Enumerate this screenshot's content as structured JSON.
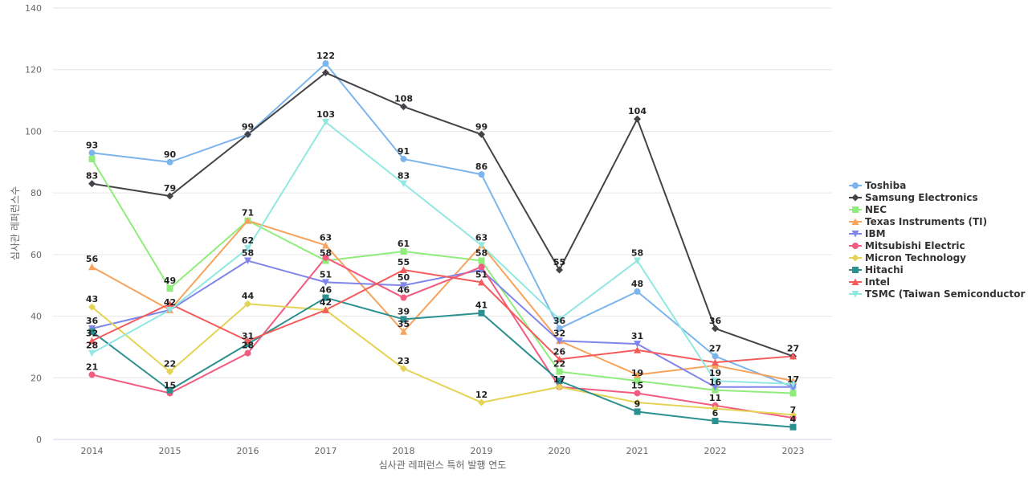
{
  "chart_data": {
    "type": "line",
    "title": "",
    "xlabel": "심사관 레퍼런스 특허 발행 연도",
    "ylabel": "심사관 레퍼런스수",
    "ylim": [
      0,
      140
    ],
    "yticks": [
      "0",
      "20",
      "40",
      "60",
      "80",
      "100",
      "120",
      "140"
    ],
    "grid": true,
    "legend_position": "right",
    "categories": [
      "2014",
      "2015",
      "2016",
      "2017",
      "2018",
      "2019",
      "2020",
      "2021",
      "2022",
      "2023"
    ],
    "series": [
      {
        "name": "Toshiba",
        "color": "#7cb5ec",
        "marker": "circle",
        "values": [
          93,
          90,
          99,
          122,
          91,
          86,
          36,
          48,
          27,
          17
        ]
      },
      {
        "name": "Samsung Electronics",
        "color": "#434348",
        "marker": "diamond",
        "values": [
          83,
          79,
          99,
          119,
          108,
          99,
          55,
          104,
          36,
          27
        ]
      },
      {
        "name": "NEC",
        "color": "#90ed7d",
        "marker": "square",
        "values": [
          91,
          49,
          71,
          58,
          61,
          58,
          22,
          19,
          16,
          15
        ]
      },
      {
        "name": "Texas Instruments (TI)",
        "color": "#f7a35c",
        "marker": "triangle",
        "values": [
          56,
          42,
          71,
          63,
          35,
          63,
          32,
          21,
          24,
          19
        ]
      },
      {
        "name": "IBM",
        "color": "#8085e9",
        "marker": "triangle-down",
        "values": [
          36,
          42,
          58,
          51,
          50,
          55,
          32,
          31,
          17,
          17
        ]
      },
      {
        "name": "Mitsubishi Electric",
        "color": "#f15c80",
        "marker": "circle",
        "values": [
          21,
          15,
          28,
          59,
          46,
          56,
          17,
          15,
          11,
          7
        ]
      },
      {
        "name": "Micron Technology",
        "color": "#e4d354",
        "marker": "diamond",
        "values": [
          43,
          22,
          44,
          42,
          23,
          12,
          17,
          12,
          10,
          8
        ]
      },
      {
        "name": "Hitachi",
        "color": "#2b908f",
        "marker": "square",
        "values": [
          35,
          16,
          31,
          46,
          39,
          41,
          19,
          9,
          6,
          4
        ]
      },
      {
        "name": "Intel",
        "color": "#f45b5b",
        "marker": "triangle",
        "values": [
          32,
          44,
          32,
          42,
          55,
          51,
          26,
          29,
          25,
          27
        ]
      },
      {
        "name": "TSMC (Taiwan Semiconductor ...",
        "color": "#91e8e1",
        "marker": "triangle-down",
        "values": [
          28,
          42,
          62,
          103,
          83,
          63,
          39,
          58,
          19,
          18
        ]
      }
    ],
    "data_labels": [
      {
        "x": "2014",
        "y": 93,
        "text": "93"
      },
      {
        "x": "2014",
        "y": 83,
        "text": "83"
      },
      {
        "x": "2014",
        "y": 56,
        "text": "56"
      },
      {
        "x": "2014",
        "y": 43,
        "text": "43"
      },
      {
        "x": "2014",
        "y": 36,
        "text": "36"
      },
      {
        "x": "2014",
        "y": 32,
        "text": "32"
      },
      {
        "x": "2014",
        "y": 28,
        "text": "28"
      },
      {
        "x": "2014",
        "y": 21,
        "text": "21"
      },
      {
        "x": "2015",
        "y": 90,
        "text": "90"
      },
      {
        "x": "2015",
        "y": 79,
        "text": "79"
      },
      {
        "x": "2015",
        "y": 49,
        "text": "49"
      },
      {
        "x": "2015",
        "y": 42,
        "text": "42"
      },
      {
        "x": "2015",
        "y": 22,
        "text": "22"
      },
      {
        "x": "2015",
        "y": 15,
        "text": "15"
      },
      {
        "x": "2016",
        "y": 99,
        "text": "99"
      },
      {
        "x": "2016",
        "y": 71,
        "text": "71"
      },
      {
        "x": "2016",
        "y": 62,
        "text": "62"
      },
      {
        "x": "2016",
        "y": 58,
        "text": "58"
      },
      {
        "x": "2016",
        "y": 44,
        "text": "44"
      },
      {
        "x": "2016",
        "y": 31,
        "text": "31"
      },
      {
        "x": "2016",
        "y": 28,
        "text": "28"
      },
      {
        "x": "2017",
        "y": 122,
        "text": "122"
      },
      {
        "x": "2017",
        "y": 103,
        "text": "103"
      },
      {
        "x": "2017",
        "y": 63,
        "text": "63"
      },
      {
        "x": "2017",
        "y": 58,
        "text": "58"
      },
      {
        "x": "2017",
        "y": 51,
        "text": "51"
      },
      {
        "x": "2017",
        "y": 46,
        "text": "46"
      },
      {
        "x": "2017",
        "y": 42,
        "text": "42"
      },
      {
        "x": "2018",
        "y": 108,
        "text": "108"
      },
      {
        "x": "2018",
        "y": 91,
        "text": "91"
      },
      {
        "x": "2018",
        "y": 83,
        "text": "83"
      },
      {
        "x": "2018",
        "y": 61,
        "text": "61"
      },
      {
        "x": "2018",
        "y": 55,
        "text": "55"
      },
      {
        "x": "2018",
        "y": 50,
        "text": "50"
      },
      {
        "x": "2018",
        "y": 46,
        "text": "46"
      },
      {
        "x": "2018",
        "y": 39,
        "text": "39"
      },
      {
        "x": "2018",
        "y": 35,
        "text": "35"
      },
      {
        "x": "2018",
        "y": 23,
        "text": "23"
      },
      {
        "x": "2019",
        "y": 99,
        "text": "99"
      },
      {
        "x": "2019",
        "y": 86,
        "text": "86"
      },
      {
        "x": "2019",
        "y": 63,
        "text": "63"
      },
      {
        "x": "2019",
        "y": 58,
        "text": "58"
      },
      {
        "x": "2019",
        "y": 51,
        "text": "51"
      },
      {
        "x": "2019",
        "y": 41,
        "text": "41"
      },
      {
        "x": "2019",
        "y": 12,
        "text": "12"
      },
      {
        "x": "2020",
        "y": 55,
        "text": "55"
      },
      {
        "x": "2020",
        "y": 36,
        "text": "36"
      },
      {
        "x": "2020",
        "y": 32,
        "text": "32"
      },
      {
        "x": "2020",
        "y": 26,
        "text": "26"
      },
      {
        "x": "2020",
        "y": 22,
        "text": "22"
      },
      {
        "x": "2020",
        "y": 17,
        "text": "17"
      },
      {
        "x": "2021",
        "y": 104,
        "text": "104"
      },
      {
        "x": "2021",
        "y": 58,
        "text": "58"
      },
      {
        "x": "2021",
        "y": 48,
        "text": "48"
      },
      {
        "x": "2021",
        "y": 31,
        "text": "31"
      },
      {
        "x": "2021",
        "y": 19,
        "text": "19"
      },
      {
        "x": "2021",
        "y": 15,
        "text": "15"
      },
      {
        "x": "2021",
        "y": 9,
        "text": "9"
      },
      {
        "x": "2022",
        "y": 36,
        "text": "36"
      },
      {
        "x": "2022",
        "y": 27,
        "text": "27"
      },
      {
        "x": "2022",
        "y": 19,
        "text": "19"
      },
      {
        "x": "2022",
        "y": 16,
        "text": "16"
      },
      {
        "x": "2022",
        "y": 11,
        "text": "11"
      },
      {
        "x": "2022",
        "y": 6,
        "text": "6"
      },
      {
        "x": "2023",
        "y": 27,
        "text": "27"
      },
      {
        "x": "2023",
        "y": 17,
        "text": "17"
      },
      {
        "x": "2023",
        "y": 7,
        "text": "7"
      },
      {
        "x": "2023",
        "y": 4,
        "text": "4"
      }
    ]
  }
}
